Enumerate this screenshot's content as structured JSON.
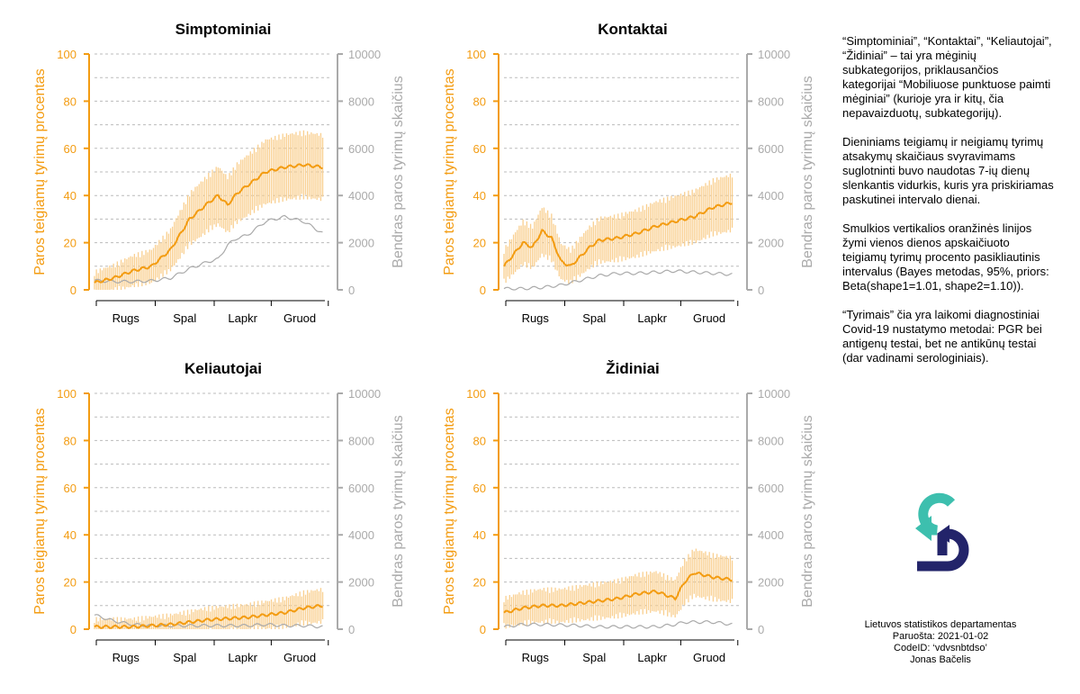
{
  "colors": {
    "orange": "#f39c12",
    "ci": "#f9cf8f",
    "gray": "#aaaaaa",
    "grid": "#bbbbbb",
    "logo_teal": "#3dbfae",
    "logo_navy": "#23246a"
  },
  "axes": {
    "left_label": "Paros teigiamų tyrimų procentas",
    "right_label": "Bendras paros tyrimų skaičius",
    "left_ticks": [
      "0",
      "20",
      "40",
      "60",
      "80",
      "100"
    ],
    "right_ticks": [
      "0",
      "2000",
      "4000",
      "6000",
      "8000",
      "10000"
    ],
    "x_ticks": [
      "Rugs",
      "Spal",
      "Lapkr",
      "Gruod"
    ]
  },
  "chart_data": [
    {
      "type": "line",
      "title": "Simptominiai",
      "ylim": [
        0,
        100
      ],
      "y2lim": [
        0,
        10000
      ],
      "grid": true,
      "x": [
        0,
        10,
        20,
        30,
        40,
        50,
        60,
        65,
        70,
        75,
        80,
        85,
        90,
        100,
        110,
        120
      ],
      "series": [
        {
          "values": [
            3,
            5,
            8,
            10,
            17,
            30,
            37,
            40,
            36,
            41,
            44,
            47,
            50,
            52,
            53,
            52
          ]
        },
        {
          "values": [
            400,
            350,
            350,
            380,
            500,
            900,
            1200,
            1300,
            1900,
            2200,
            2300,
            2600,
            2900,
            3100,
            2900,
            2400
          ]
        }
      ]
    },
    {
      "type": "line",
      "title": "Kontaktai",
      "ylim": [
        0,
        100
      ],
      "y2lim": [
        0,
        10000
      ],
      "grid": true,
      "x": [
        0,
        5,
        10,
        15,
        20,
        25,
        30,
        35,
        40,
        45,
        50,
        60,
        70,
        80,
        90,
        100,
        110,
        120
      ],
      "series": [
        {
          "values": [
            10,
            15,
            20,
            18,
            25,
            22,
            12,
            10,
            14,
            18,
            21,
            22,
            24,
            27,
            29,
            31,
            35,
            37
          ]
        },
        {
          "values": [
            50,
            50,
            50,
            80,
            100,
            150,
            200,
            300,
            400,
            500,
            600,
            700,
            700,
            750,
            800,
            750,
            700,
            650
          ]
        }
      ]
    },
    {
      "type": "line",
      "title": "Keliautojai",
      "ylim": [
        0,
        100
      ],
      "y2lim": [
        0,
        10000
      ],
      "grid": true,
      "x": [
        0,
        10,
        20,
        30,
        40,
        50,
        60,
        70,
        80,
        90,
        100,
        110,
        120
      ],
      "series": [
        {
          "values": [
            1,
            1,
            1,
            1.5,
            2,
            3,
            4,
            4.5,
            5,
            6,
            7,
            9,
            10
          ]
        },
        {
          "values": [
            600,
            350,
            200,
            150,
            150,
            150,
            150,
            150,
            150,
            200,
            150,
            150,
            100
          ]
        }
      ]
    },
    {
      "type": "line",
      "title": "Židiniai",
      "ylim": [
        0,
        100
      ],
      "y2lim": [
        0,
        10000
      ],
      "grid": true,
      "x": [
        0,
        10,
        20,
        30,
        40,
        50,
        60,
        70,
        80,
        90,
        95,
        100,
        110,
        120
      ],
      "series": [
        {
          "values": [
            7,
            9,
            10,
            10,
            11,
            12,
            13,
            15,
            16,
            13,
            20,
            24,
            22,
            21
          ]
        },
        {
          "values": [
            100,
            200,
            200,
            180,
            150,
            100,
            100,
            100,
            100,
            200,
            300,
            300,
            300,
            200
          ]
        }
      ]
    }
  ],
  "notes": [
    "“Simptominiai”, “Kontaktai”, “Keliautojai”, “Židiniai” – tai yra mėginių subkategorijos, priklausančios kategorijai “Mobiliuose punktuose paimti mėginiai” (kurioje yra ir kitų, čia nepavaizduotų, subkategorijų).",
    "Dieniniams teigiamų ir neigiamų tyrimų atsakymų skaičiaus svyravimams suglotninti buvo naudotas 7-ių dienų slenkantis vidurkis, kuris yra priskiriamas paskutinei intervalo dienai.",
    "Smulkios vertikalios oranžinės linijos žymi vienos dienos apskaičiuoto teigiamų tyrimų procento pasikliautinis intervalus (Bayes metodas, 95%, priors: Beta(shape1=1.01, shape2=1.10)).",
    "“Tyrimais” čia yra laikomi diagnostiniai Covid-19 nustatymo metodai: PGR bei antigenų testai, bet ne antikūnų testai (dar vadinami serologiniais)."
  ],
  "footer": {
    "org": "Lietuvos statistikos departamentas",
    "prepared": "Paruošta: 2021-01-02",
    "codeid": "CodeID: ‘vdvsnbtdso’",
    "author": "Jonas Bačelis"
  },
  "logo": {
    "name": "logo-icon"
  }
}
